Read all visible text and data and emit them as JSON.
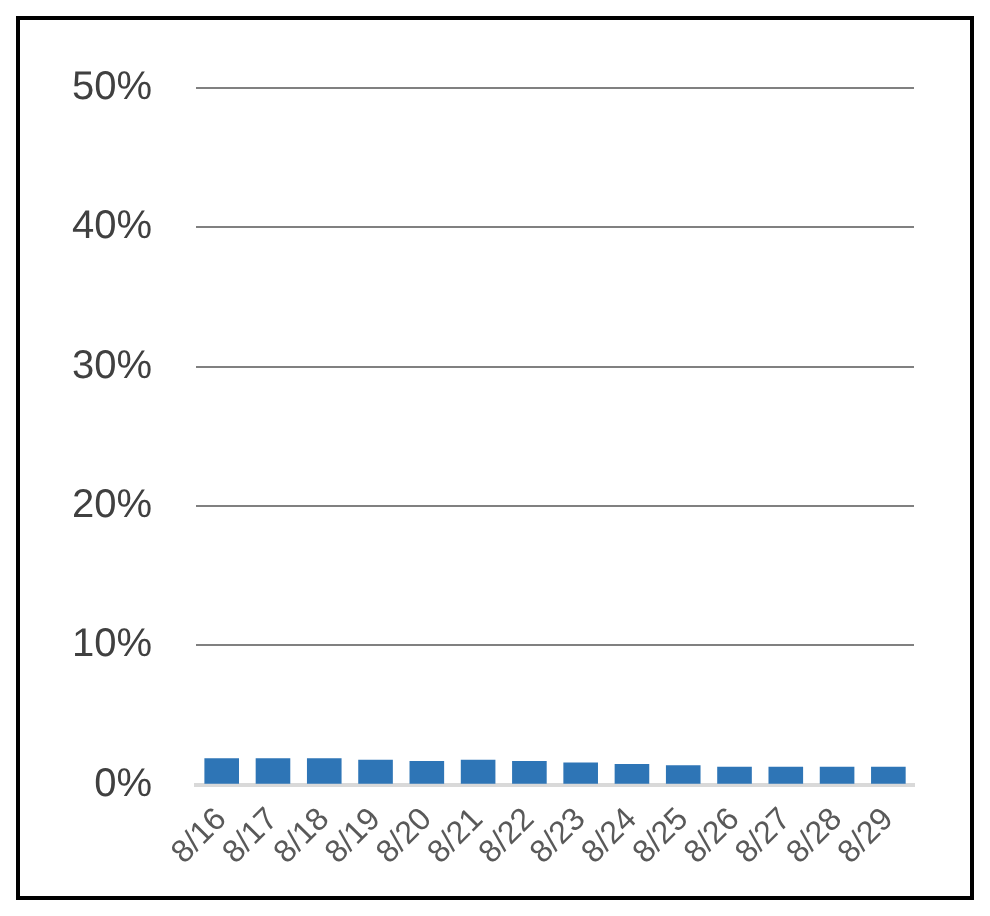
{
  "chart_data": {
    "type": "bar",
    "categories": [
      "8/16",
      "8/17",
      "8/18",
      "8/19",
      "8/20",
      "8/21",
      "8/22",
      "8/23",
      "8/24",
      "8/25",
      "8/26",
      "8/27",
      "8/28",
      "8/29"
    ],
    "values": [
      1.9,
      1.9,
      1.9,
      1.8,
      1.7,
      1.8,
      1.7,
      1.6,
      1.5,
      1.4,
      1.3,
      1.3,
      1.3,
      1.3
    ],
    "color": "#2e75b6",
    "ylim": [
      0,
      50
    ],
    "yticks": [
      {
        "value": 0,
        "label": "0%"
      },
      {
        "value": 10,
        "label": "10%"
      },
      {
        "value": 20,
        "label": "20%"
      },
      {
        "value": 30,
        "label": "30%"
      },
      {
        "value": 40,
        "label": "40%"
      },
      {
        "value": 50,
        "label": "50%"
      }
    ],
    "grid": "y",
    "legend": false
  }
}
